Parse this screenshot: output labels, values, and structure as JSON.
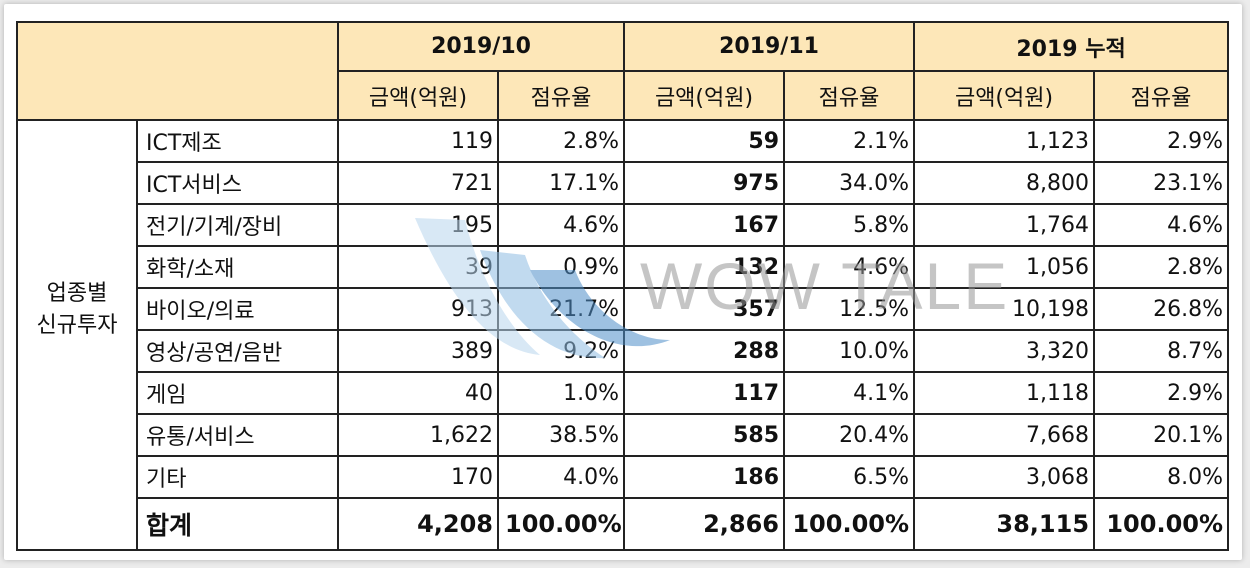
{
  "header": {
    "periods": [
      "2019/10",
      "2019/11",
      "2019 누적"
    ],
    "amount_label": "금액(억원)",
    "share_label": "점유율"
  },
  "group_label": "업종별\n신규투자",
  "rows": [
    {
      "category": "ICT제조",
      "oct_amount": "119",
      "oct_share": "2.8%",
      "nov_amount": "59",
      "nov_share": "2.1%",
      "cum_amount": "1,123",
      "cum_share": "2.9%"
    },
    {
      "category": "ICT서비스",
      "oct_amount": "721",
      "oct_share": "17.1%",
      "nov_amount": "975",
      "nov_share": "34.0%",
      "cum_amount": "8,800",
      "cum_share": "23.1%"
    },
    {
      "category": "전기/기계/장비",
      "oct_amount": "195",
      "oct_share": "4.6%",
      "nov_amount": "167",
      "nov_share": "5.8%",
      "cum_amount": "1,764",
      "cum_share": "4.6%"
    },
    {
      "category": "화학/소재",
      "oct_amount": "39",
      "oct_share": "0.9%",
      "nov_amount": "132",
      "nov_share": "4.6%",
      "cum_amount": "1,056",
      "cum_share": "2.8%"
    },
    {
      "category": "바이오/의료",
      "oct_amount": "913",
      "oct_share": "21.7%",
      "nov_amount": "357",
      "nov_share": "12.5%",
      "cum_amount": "10,198",
      "cum_share": "26.8%"
    },
    {
      "category": "영상/공연/음반",
      "oct_amount": "389",
      "oct_share": "9.2%",
      "nov_amount": "288",
      "nov_share": "10.0%",
      "cum_amount": "3,320",
      "cum_share": "8.7%"
    },
    {
      "category": "게임",
      "oct_amount": "40",
      "oct_share": "1.0%",
      "nov_amount": "117",
      "nov_share": "4.1%",
      "cum_amount": "1,118",
      "cum_share": "2.9%"
    },
    {
      "category": "유통/서비스",
      "oct_amount": "1,622",
      "oct_share": "38.5%",
      "nov_amount": "585",
      "nov_share": "20.4%",
      "cum_amount": "7,668",
      "cum_share": "20.1%"
    },
    {
      "category": "기타",
      "oct_amount": "170",
      "oct_share": "4.0%",
      "nov_amount": "186",
      "nov_share": "6.5%",
      "cum_amount": "3,068",
      "cum_share": "8.0%"
    }
  ],
  "total": {
    "label": "합계",
    "oct_amount": "4,208",
    "oct_share": "100.00%",
    "nov_amount": "2,866",
    "nov_share": "100.00%",
    "cum_amount": "38,115",
    "cum_share": "100.00%"
  },
  "watermark": {
    "text": "WOW TALE",
    "colors": {
      "light": "#b9d6ee",
      "dark": "#4f8fc9"
    }
  },
  "colors": {
    "header_bg": "#fde7b8",
    "border": "#222222"
  }
}
